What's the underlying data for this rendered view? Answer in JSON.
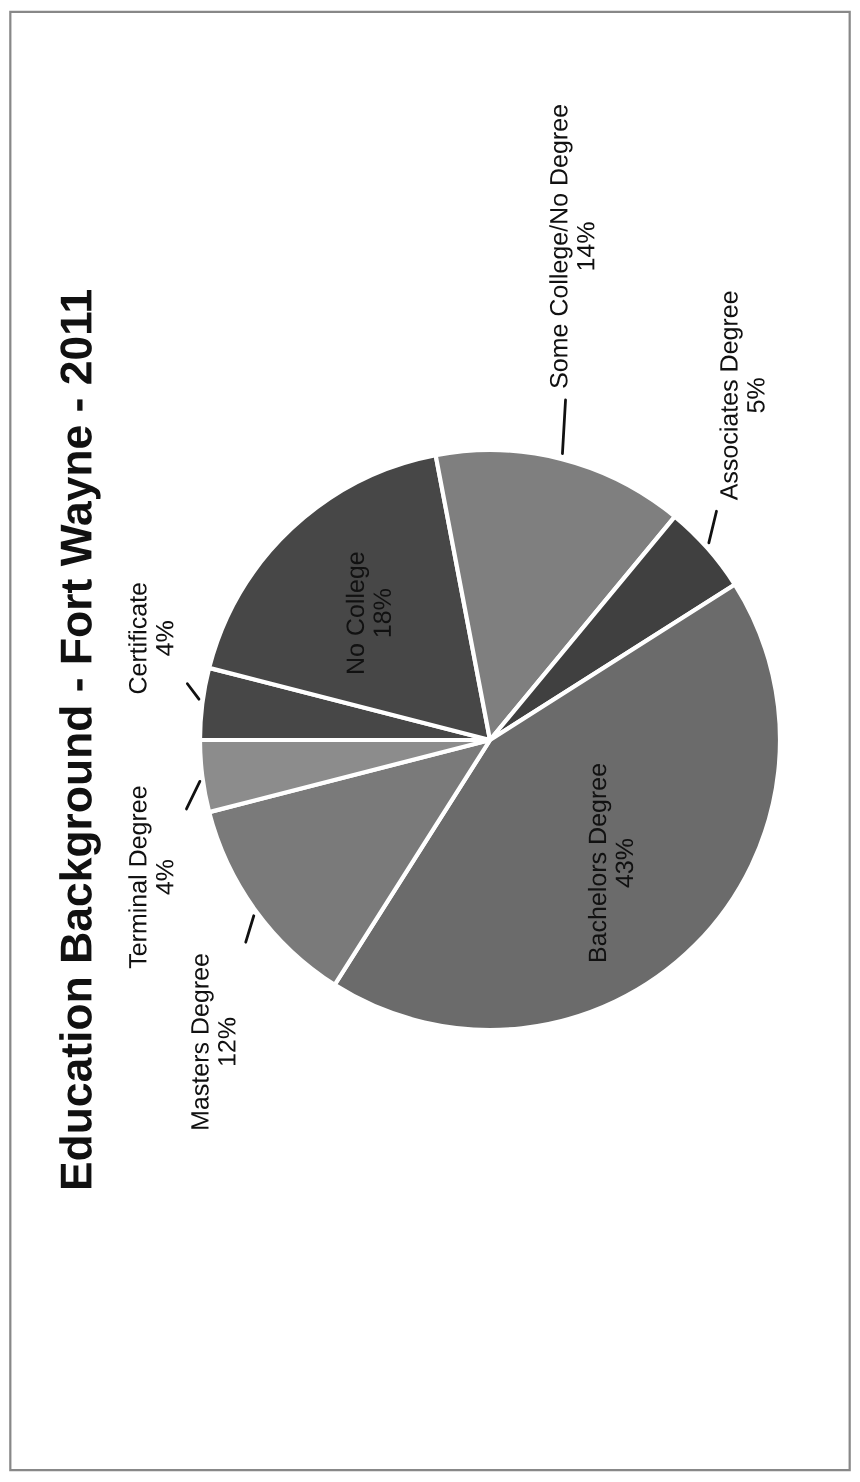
{
  "chart_data": {
    "type": "pie",
    "title": "Education Background - Fort Wayne - 2011",
    "categories": [
      "Certificate",
      "No College",
      "Some College/No Degree",
      "Associates Degree",
      "Bachelors Degree",
      "Masters Degree",
      "Terminal Degree"
    ],
    "values": [
      4,
      18,
      14,
      5,
      43,
      12,
      4
    ],
    "value_labels": [
      "4%",
      "18%",
      "14%",
      "5%",
      "43%",
      "12%",
      "4%"
    ],
    "colors": [
      "#474747",
      "#474747",
      "#7f7f7f",
      "#404040",
      "#6b6b6b",
      "#7a7a7a",
      "#8c8c8c"
    ],
    "legend": false
  }
}
